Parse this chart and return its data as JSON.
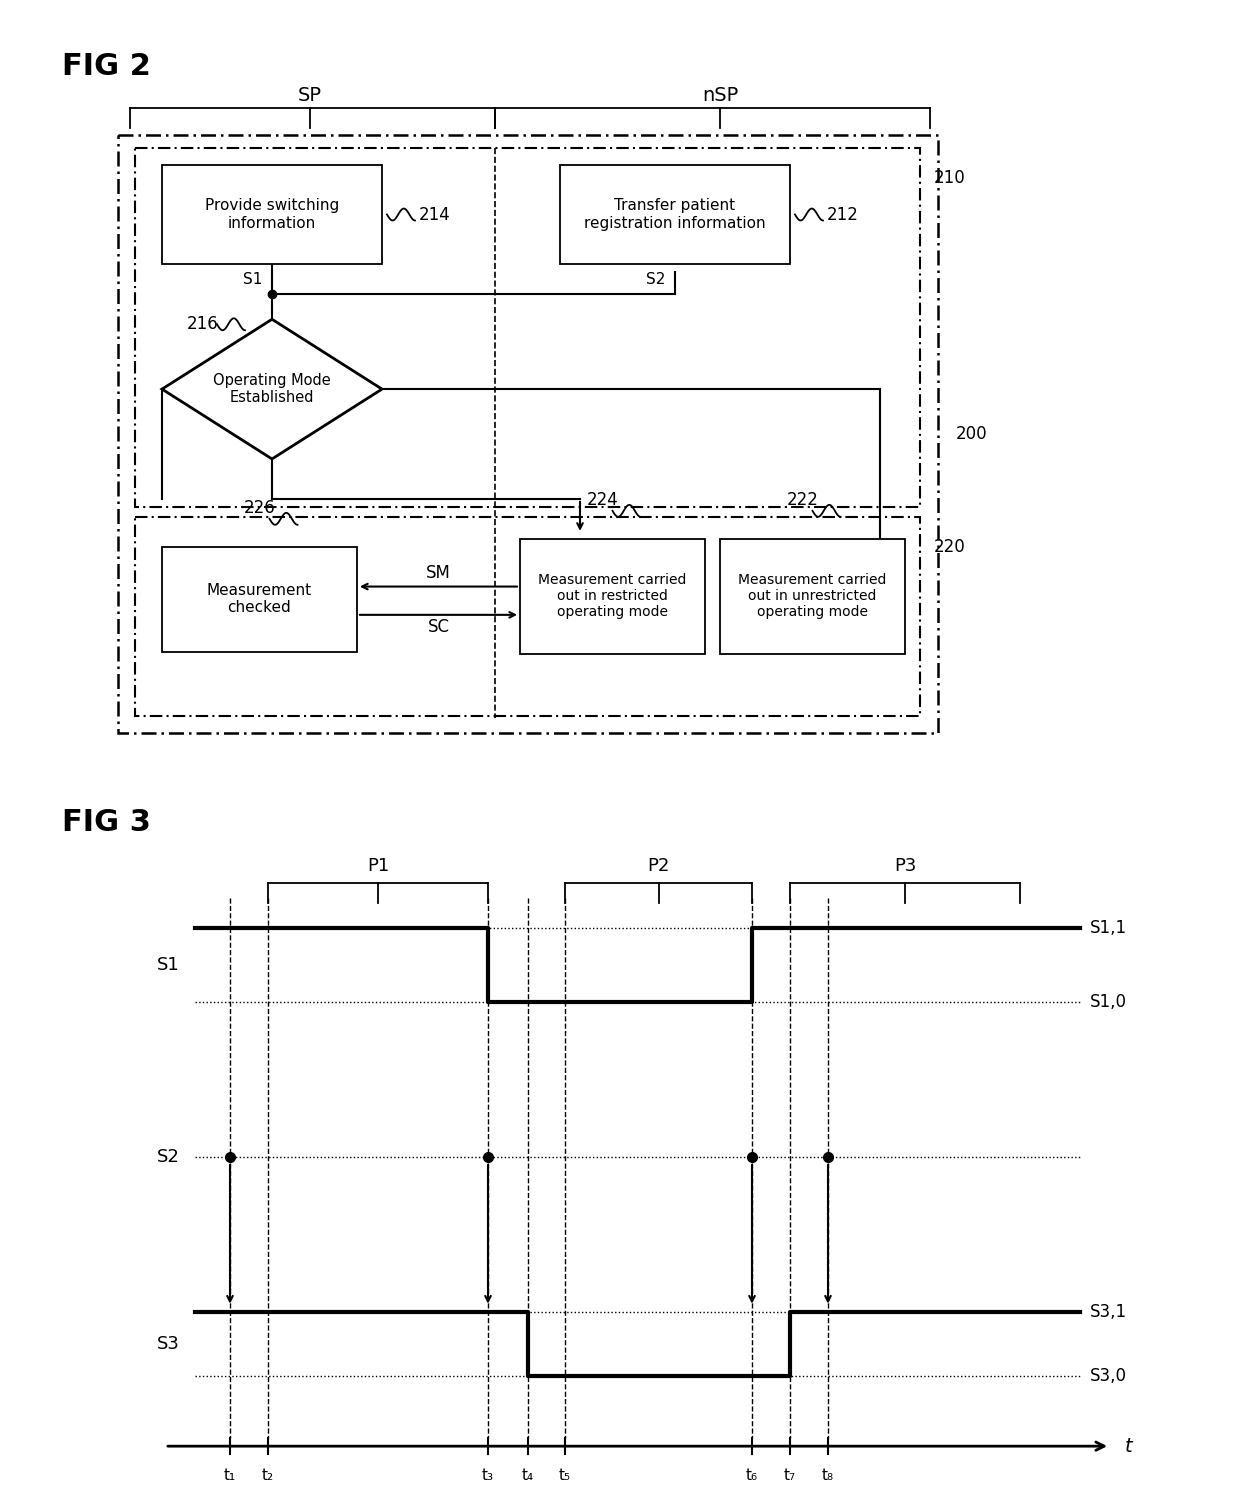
{
  "fig2_title": "FIG 2",
  "fig3_title": "FIG 3",
  "sp_label": "SP",
  "nsp_label": "nSP",
  "label_200": "200",
  "label_210": "210",
  "label_220": "220",
  "label_214": "214",
  "label_212": "212",
  "label_216": "216",
  "label_226": "226",
  "label_224": "224",
  "label_222": "222",
  "box214_text": "Provide switching\ninformation",
  "box212_text": "Transfer patient\nregistration information",
  "box216_text": "Operating Mode\nEstablished",
  "box226_text": "Measurement\nchecked",
  "box224_text": "Measurement carried\nout in restricted\noperating mode",
  "box222_text": "Measurement carried\nout in unrestricted\noperating mode",
  "s1_label": "S1",
  "s2_label": "S2",
  "s3_label": "S3",
  "s11_label": "S1,1",
  "s10_label": "S1,0",
  "s31_label": "S3,1",
  "s30_label": "S3,0",
  "t_labels": [
    "t₁",
    "t₂",
    "t₃",
    "t₄",
    "t₅",
    "t₆",
    "t₇",
    "t₈"
  ],
  "t_axis_label": "t",
  "period_labels": [
    "P1",
    "P2",
    "P3"
  ],
  "sm_label": "SM",
  "sc_label": "SC",
  "s1_label_diag": "S1",
  "s2_label_diag": "S2",
  "background_color": "#ffffff"
}
